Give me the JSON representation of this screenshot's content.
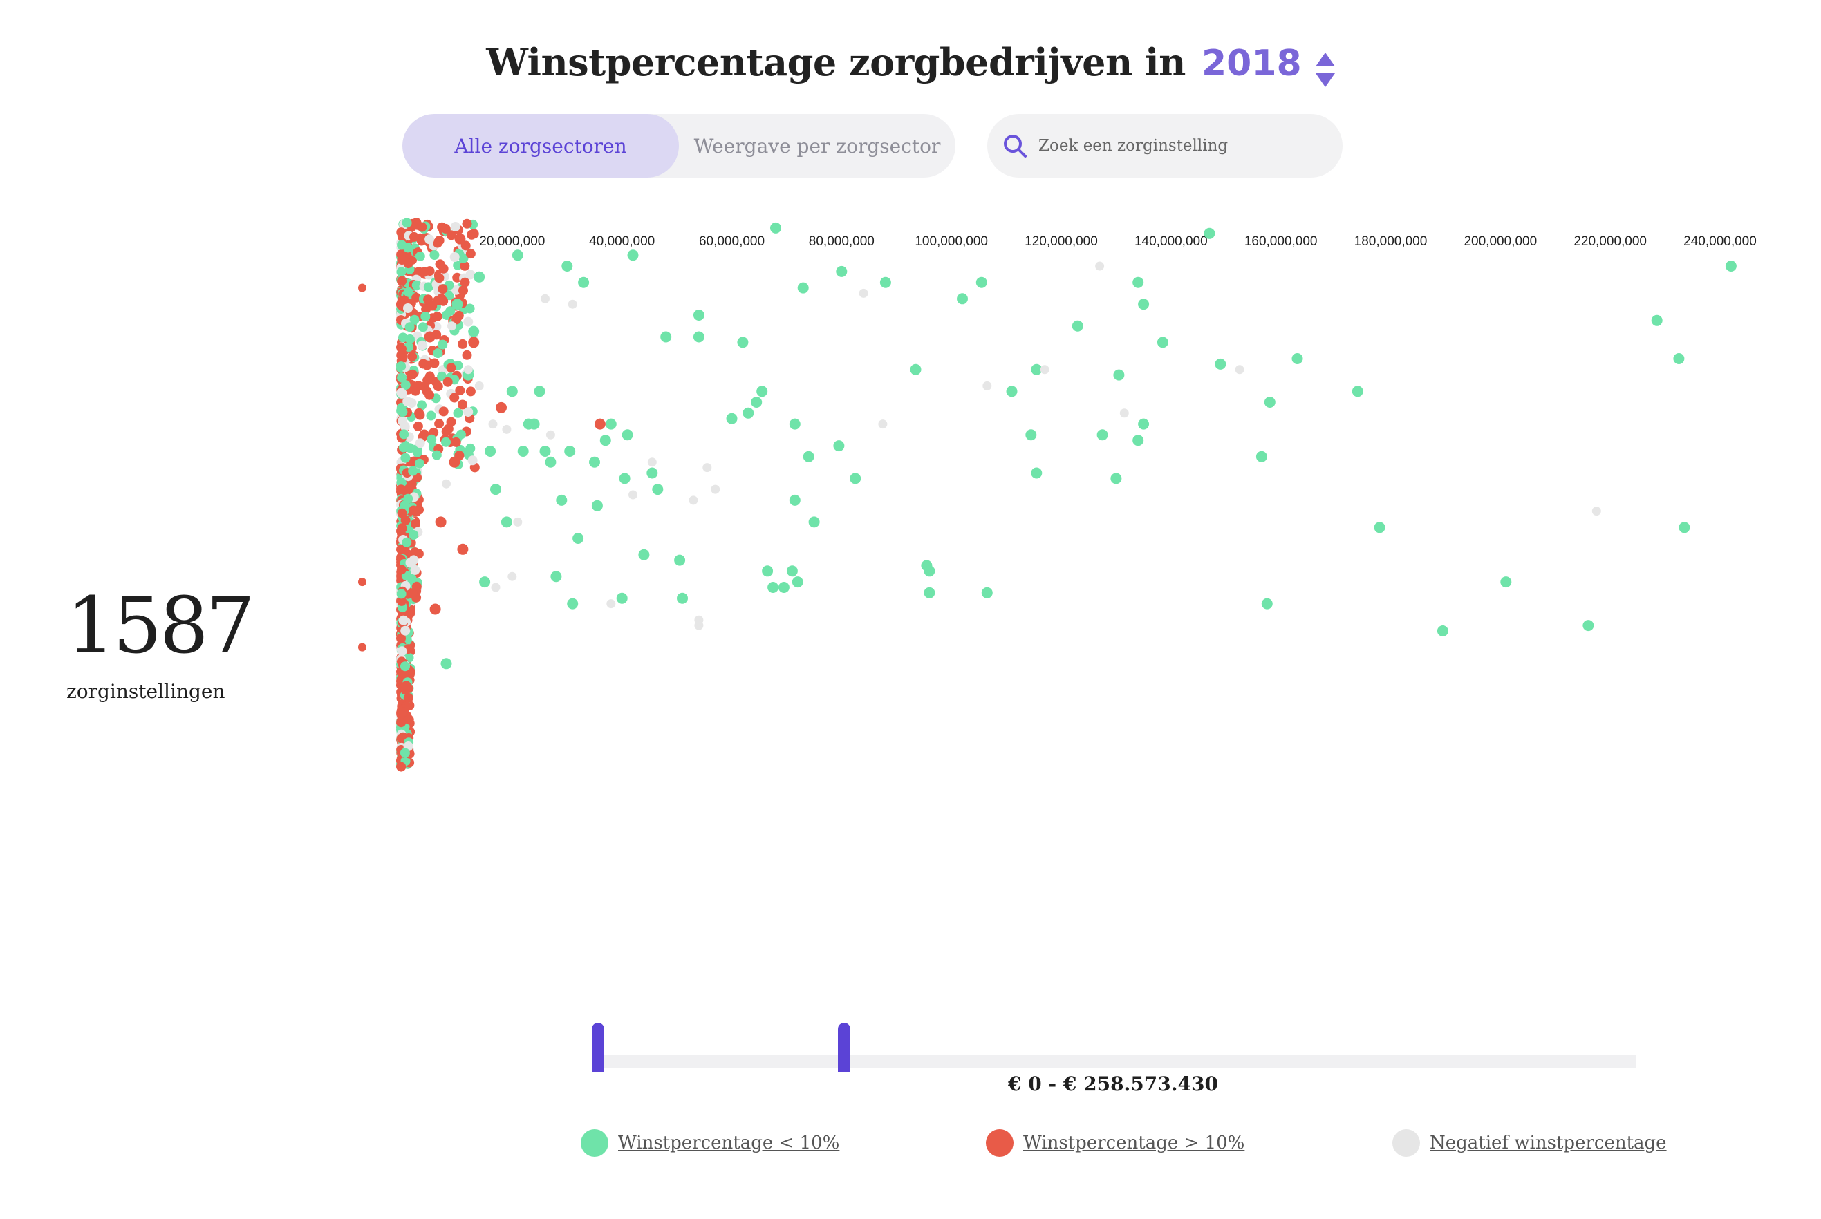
{
  "header": {
    "title": "Winstpercentage zorgbedrijven in",
    "year": "2018"
  },
  "tabs": [
    {
      "label": "Alle zorgsectoren"
    },
    {
      "label": "Weergave per zorgsector"
    }
  ],
  "search": {
    "placeholder": "Zoek een zorginstelling"
  },
  "summary": {
    "count": "1587",
    "count_label": "zorginstellingen"
  },
  "slider": {
    "range_label": "€ 0 - € 258.573.430"
  },
  "legend": [
    {
      "label": "Winstpercentage < 10%",
      "color": "#6fe3a9"
    },
    {
      "label": "Winstpercentage > 10%",
      "color": "#e85b48"
    },
    {
      "label": "Negatief winstpercentage",
      "color": "#e6e6e6"
    }
  ],
  "chart_data": {
    "type": "scatter",
    "title": "Winstpercentage zorgbedrijven in 2018",
    "xlabel": "",
    "ylabel": "",
    "xlim": [
      0,
      240000000
    ],
    "x_ticks": [
      "20,000,000",
      "40,000,000",
      "60,000,000",
      "80,000,000",
      "100,000,000",
      "120,000,000",
      "140,000,000",
      "160,000,000",
      "180,000,000",
      "200,000,000",
      "220,000,000",
      "240,000,000"
    ],
    "x_tick_values": [
      20000000,
      40000000,
      60000000,
      80000000,
      100000000,
      120000000,
      140000000,
      160000000,
      180000000,
      200000000,
      220000000,
      240000000
    ],
    "series": [
      {
        "name": "Winstpercentage < 10%",
        "color": "#6fe3a9",
        "points": [
          [
            242000000,
            0.08
          ],
          [
            228500000,
            0.18
          ],
          [
            232500000,
            0.25
          ],
          [
            147000000,
            0.02
          ],
          [
            68000000,
            0.01
          ],
          [
            80000000,
            0.09
          ],
          [
            73000000,
            0.12
          ],
          [
            88000000,
            0.11
          ],
          [
            105500000,
            0.11
          ],
          [
            134000000,
            0.11
          ],
          [
            102000000,
            0.14
          ],
          [
            135000000,
            0.15
          ],
          [
            123000000,
            0.19
          ],
          [
            138500000,
            0.22
          ],
          [
            54000000,
            0.17
          ],
          [
            54000000,
            0.21
          ],
          [
            62000000,
            0.22
          ],
          [
            48000000,
            0.21
          ],
          [
            93500000,
            0.27
          ],
          [
            115500000,
            0.27
          ],
          [
            130500000,
            0.28
          ],
          [
            149000000,
            0.26
          ],
          [
            163000000,
            0.25
          ],
          [
            174000000,
            0.31
          ],
          [
            111000000,
            0.31
          ],
          [
            65500000,
            0.31
          ],
          [
            64500000,
            0.33
          ],
          [
            158000000,
            0.33
          ],
          [
            63000000,
            0.35
          ],
          [
            60000000,
            0.36
          ],
          [
            71500000,
            0.37
          ],
          [
            135000000,
            0.37
          ],
          [
            127500000,
            0.39
          ],
          [
            134000000,
            0.4
          ],
          [
            114500000,
            0.39
          ],
          [
            79500000,
            0.41
          ],
          [
            74000000,
            0.43
          ],
          [
            156500000,
            0.43
          ],
          [
            115500000,
            0.46
          ],
          [
            82500000,
            0.47
          ],
          [
            130000000,
            0.47
          ],
          [
            71500000,
            0.51
          ],
          [
            75000000,
            0.55
          ],
          [
            178000000,
            0.56
          ],
          [
            233500000,
            0.56
          ],
          [
            95500000,
            0.63
          ],
          [
            96000000,
            0.64
          ],
          [
            66500000,
            0.64
          ],
          [
            71000000,
            0.64
          ],
          [
            72000000,
            0.66
          ],
          [
            67500000,
            0.67
          ],
          [
            69500000,
            0.67
          ],
          [
            96000000,
            0.68
          ],
          [
            106500000,
            0.68
          ],
          [
            201000000,
            0.66
          ],
          [
            157500000,
            0.7
          ],
          [
            189500000,
            0.75
          ],
          [
            216000000,
            0.74
          ],
          [
            42000000,
            0.06
          ],
          [
            30000000,
            0.08
          ],
          [
            33000000,
            0.11
          ],
          [
            41000000,
            0.39
          ],
          [
            26000000,
            0.42
          ],
          [
            30500000,
            0.42
          ],
          [
            35000000,
            0.44
          ],
          [
            37000000,
            0.4
          ],
          [
            23000000,
            0.37
          ],
          [
            45500000,
            0.46
          ],
          [
            46500000,
            0.49
          ],
          [
            40500000,
            0.47
          ],
          [
            44000000,
            0.61
          ],
          [
            50500000,
            0.62
          ],
          [
            51000000,
            0.69
          ],
          [
            40000000,
            0.69
          ],
          [
            31000000,
            0.7
          ],
          [
            24000000,
            0.37
          ],
          [
            20000000,
            0.31
          ],
          [
            17000000,
            0.49
          ],
          [
            22000000,
            0.42
          ],
          [
            19000000,
            0.55
          ],
          [
            15000000,
            0.66
          ],
          [
            8000000,
            0.81
          ],
          [
            12000000,
            0.28
          ],
          [
            13000000,
            0.2
          ],
          [
            10000000,
            0.15
          ],
          [
            16000000,
            0.42
          ],
          [
            21000000,
            0.06
          ],
          [
            27000000,
            0.44
          ],
          [
            35500000,
            0.52
          ],
          [
            32000000,
            0.58
          ],
          [
            28000000,
            0.65
          ],
          [
            38000000,
            0.37
          ],
          [
            25000000,
            0.31
          ],
          [
            29000000,
            0.51
          ],
          [
            14000000,
            0.1
          ]
        ]
      },
      {
        "name": "Winstpercentage > 10%",
        "color": "#e85b48",
        "points": [
          [
            36000000,
            0.37
          ],
          [
            18000000,
            0.34
          ],
          [
            9500000,
            0.44
          ],
          [
            6000000,
            0.71
          ],
          [
            5000000,
            0.21
          ],
          [
            10500000,
            0.03
          ],
          [
            13000000,
            0.22
          ],
          [
            7000000,
            0.55
          ],
          [
            11000000,
            0.6
          ]
        ]
      },
      {
        "name": "Negatief winstpercentage",
        "color": "#e6e6e6",
        "points": [
          [
            127000000,
            0.08
          ],
          [
            84000000,
            0.13
          ],
          [
            152500000,
            0.27
          ],
          [
            117000000,
            0.27
          ],
          [
            106500000,
            0.3
          ],
          [
            131500000,
            0.35
          ],
          [
            87500000,
            0.37
          ],
          [
            57000000,
            0.49
          ],
          [
            53000000,
            0.51
          ],
          [
            217500000,
            0.53
          ],
          [
            54000000,
            0.73
          ],
          [
            54000000,
            0.74
          ],
          [
            38000000,
            0.7
          ],
          [
            42000000,
            0.5
          ],
          [
            26000000,
            0.14
          ],
          [
            31000000,
            0.15
          ],
          [
            27000000,
            0.39
          ],
          [
            45500000,
            0.44
          ],
          [
            55500000,
            0.45
          ],
          [
            20000000,
            0.65
          ],
          [
            17000000,
            0.67
          ],
          [
            19000000,
            0.38
          ],
          [
            12000000,
            0.27
          ],
          [
            14000000,
            0.3
          ],
          [
            9000000,
            0.19
          ],
          [
            8000000,
            0.48
          ],
          [
            16500000,
            0.37
          ],
          [
            21000000,
            0.55
          ]
        ]
      }
    ],
    "dense_column_note": "Most of the 1587 institutions cluster near x = 0"
  }
}
